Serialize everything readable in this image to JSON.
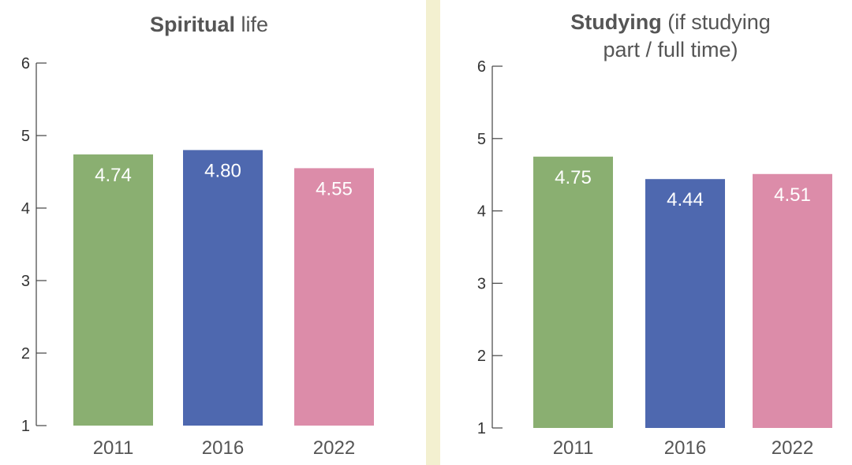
{
  "chart_data": [
    {
      "type": "bar",
      "title_bold": "Spiritual",
      "title_rest": " life",
      "title_line2": "",
      "categories": [
        "2011",
        "2016",
        "2022"
      ],
      "values": [
        4.74,
        4.8,
        4.55
      ],
      "value_labels": [
        "4.74",
        "4.80",
        "4.55"
      ],
      "ylim": [
        1,
        6
      ],
      "yticks": [
        "1",
        "2",
        "3",
        "4",
        "5",
        "6"
      ],
      "xlabel": "",
      "ylabel": "",
      "grid": false
    },
    {
      "type": "bar",
      "title_bold": "Studying",
      "title_rest": " (if studying",
      "title_line2": "part / full time)",
      "categories": [
        "2011",
        "2016",
        "2022"
      ],
      "values": [
        4.75,
        4.44,
        4.51
      ],
      "value_labels": [
        "4.75",
        "4.44",
        "4.51"
      ],
      "ylim": [
        1,
        6
      ],
      "yticks": [
        "1",
        "2",
        "3",
        "4",
        "5",
        "6"
      ],
      "xlabel": "",
      "ylabel": "",
      "grid": false
    }
  ],
  "colors": {
    "bar_2011": "#8aaf71",
    "bar_2016": "#4e68af",
    "bar_2022": "#dc8ca9",
    "divider": "#f3f0d0",
    "axis": "#444444"
  }
}
